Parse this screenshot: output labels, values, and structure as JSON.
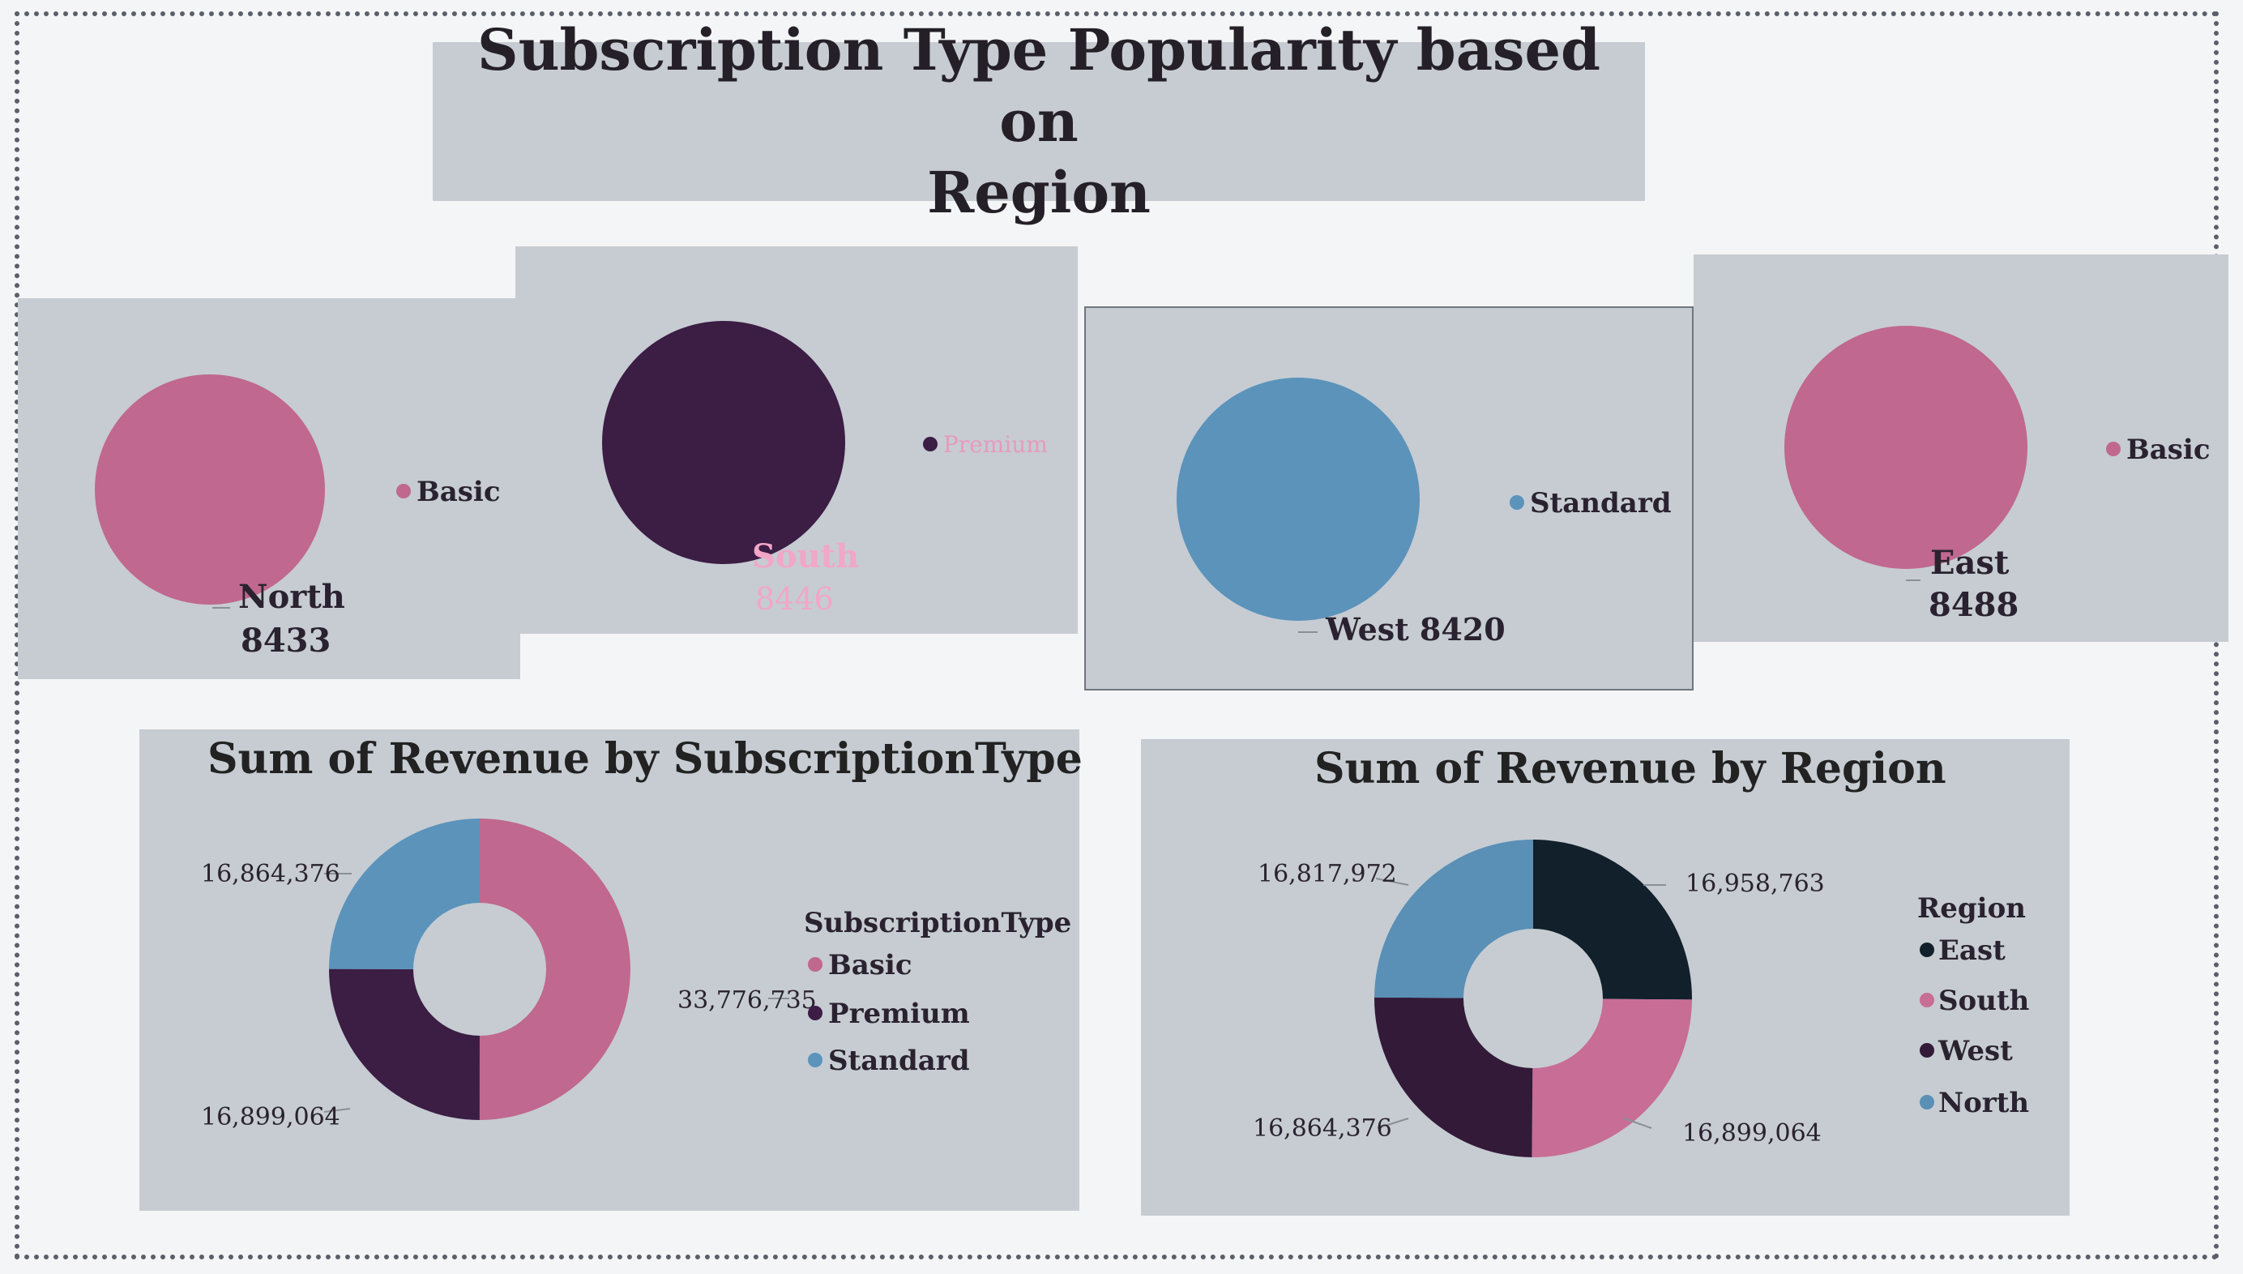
{
  "title": {
    "line1": "Subscription Type Popularity based on",
    "line2": "Region"
  },
  "colors": {
    "basic": "#c0688f",
    "premium": "#3c1d44",
    "standard": "#5b93bb",
    "east": "#12202b",
    "south": "#c86d96",
    "west": "#331a38",
    "north": "#5a8fb6"
  },
  "chart_data": [
    {
      "type": "pie",
      "region": "North",
      "value": 8433,
      "series": [
        {
          "name": "Basic",
          "values": [
            8433
          ]
        }
      ],
      "categories": [
        "Basic"
      ],
      "label_name": "North",
      "label_value": "8433",
      "legend": [
        "Basic"
      ]
    },
    {
      "type": "pie",
      "region": "South",
      "value": 8446,
      "series": [
        {
          "name": "Premium",
          "values": [
            8446
          ]
        }
      ],
      "categories": [
        "Premium"
      ],
      "label_name": "South",
      "label_value": "8446",
      "legend": [
        "Premium"
      ]
    },
    {
      "type": "pie",
      "region": "West",
      "value": 8420,
      "series": [
        {
          "name": "Standard",
          "values": [
            8420
          ]
        }
      ],
      "categories": [
        "Standard"
      ],
      "label_name": "West 8420",
      "legend": [
        "Standard"
      ]
    },
    {
      "type": "pie",
      "region": "East",
      "value": 8488,
      "series": [
        {
          "name": "Basic",
          "values": [
            8488
          ]
        }
      ],
      "categories": [
        "Basic"
      ],
      "label_name": "East",
      "label_value": "8488",
      "legend": [
        "Basic"
      ]
    },
    {
      "type": "pie",
      "donut": true,
      "title": "Sum of Revenue by SubscriptionType",
      "legend_title": "SubscriptionType",
      "categories": [
        "Basic",
        "Premium",
        "Standard"
      ],
      "values": [
        33776735,
        16899064,
        16864376
      ],
      "value_labels": [
        "33,776,735",
        "16,899,064",
        "16,864,376"
      ],
      "legend_position": "right"
    },
    {
      "type": "pie",
      "donut": true,
      "title": "Sum of Revenue by Region",
      "legend_title": "Region",
      "categories": [
        "East",
        "South",
        "West",
        "North"
      ],
      "values": [
        16958763,
        16899064,
        16864376,
        16817972
      ],
      "value_labels": [
        "16,958,763",
        "16,899,064",
        "16,864,376",
        "16,817,972"
      ],
      "legend_position": "right"
    }
  ]
}
